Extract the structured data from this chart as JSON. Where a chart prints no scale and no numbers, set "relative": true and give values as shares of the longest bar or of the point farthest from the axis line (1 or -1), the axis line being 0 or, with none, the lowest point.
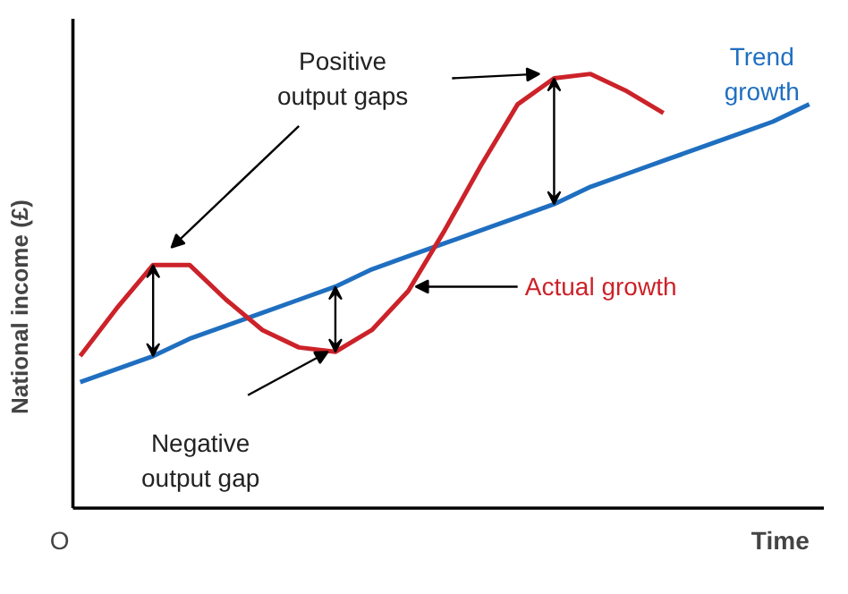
{
  "chart_data": {
    "type": "line",
    "relative": true,
    "xlabel": "Time",
    "ylabel": "National income (£)",
    "categories": [
      null,
      null,
      null,
      null,
      null,
      null,
      null,
      null,
      null,
      null,
      null,
      null,
      null,
      null,
      null,
      null,
      null,
      null,
      null,
      null,
      null
    ],
    "series": [
      {
        "name": "Trend\ngrowth",
        "color": "#1f6fc0",
        "values": [
          0.29,
          0.32,
          0.35,
          0.39,
          0.42,
          0.45,
          0.48,
          0.51,
          0.55,
          0.58,
          0.61,
          0.64,
          0.67,
          0.7,
          0.74,
          0.77,
          0.8,
          0.83,
          0.86,
          0.89,
          0.93
        ]
      },
      {
        "name": "Actual growth",
        "color": "#cc2229",
        "values": [
          0.35,
          0.46,
          0.56,
          0.56,
          0.48,
          0.41,
          0.37,
          0.36,
          0.41,
          0.5,
          0.64,
          0.79,
          0.93,
          0.99,
          1.0,
          0.96,
          0.91,
          null,
          null,
          null,
          null
        ]
      }
    ],
    "annotations": [
      "Positive\noutput gaps",
      "Negative\noutput gap",
      "O"
    ],
    "grid": false,
    "marker": "none",
    "line_style": "solid"
  }
}
